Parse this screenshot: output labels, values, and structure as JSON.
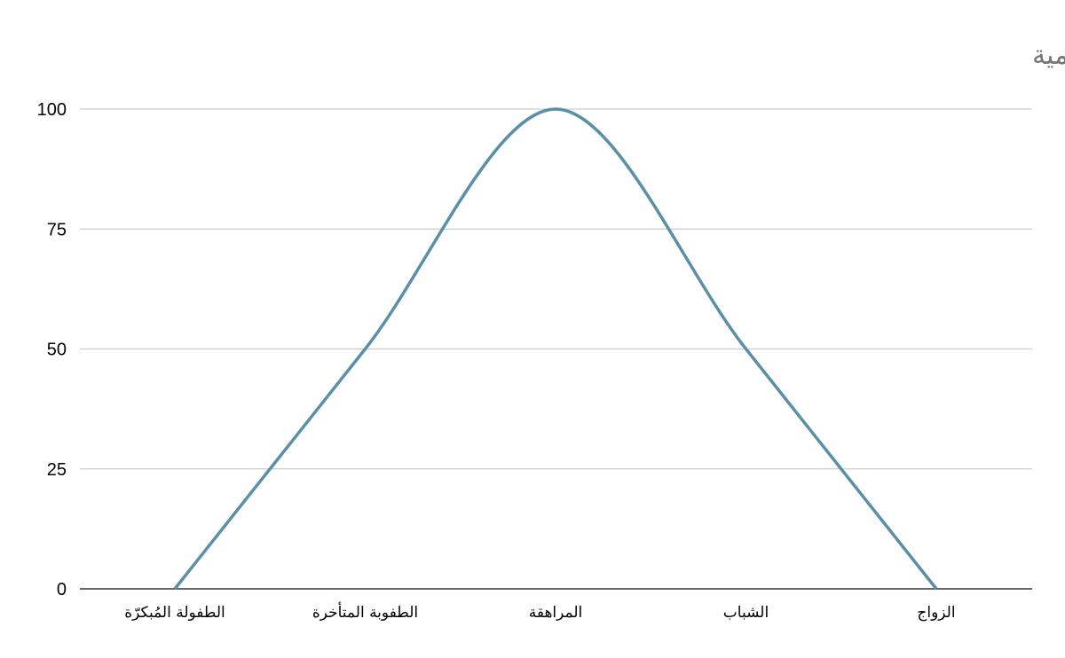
{
  "chart_data": {
    "type": "line",
    "title": "معدل قدرة الذكر على القيام بالمهمام اليومية",
    "categories": [
      "الطفولة المُبكرّة",
      "الطفوبة المتأخرة",
      "المراهقة",
      "الشباب",
      "الزواج"
    ],
    "series": [
      {
        "values": [
          0,
          50,
          100,
          50,
          0
        ],
        "color": "#5b8fa8"
      }
    ],
    "ylim": [
      0,
      100
    ],
    "yticks": [
      0,
      25,
      50,
      75,
      100
    ],
    "grid": true,
    "smooth": true,
    "legend": "none"
  }
}
